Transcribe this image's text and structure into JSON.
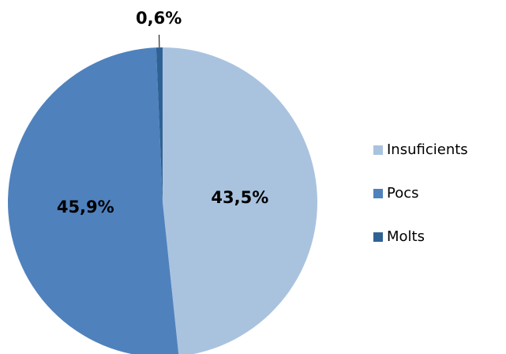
{
  "chart_data": {
    "type": "pie",
    "categories": [
      "Insuficients",
      "Pocs",
      "Molts"
    ],
    "values": [
      43.5,
      45.9,
      0.6
    ],
    "value_labels": [
      "43,5%",
      "45,9%",
      "0,6%"
    ],
    "colors": [
      "#a9c3df",
      "#4f81bd",
      "#2f6294"
    ],
    "legend": "right"
  }
}
